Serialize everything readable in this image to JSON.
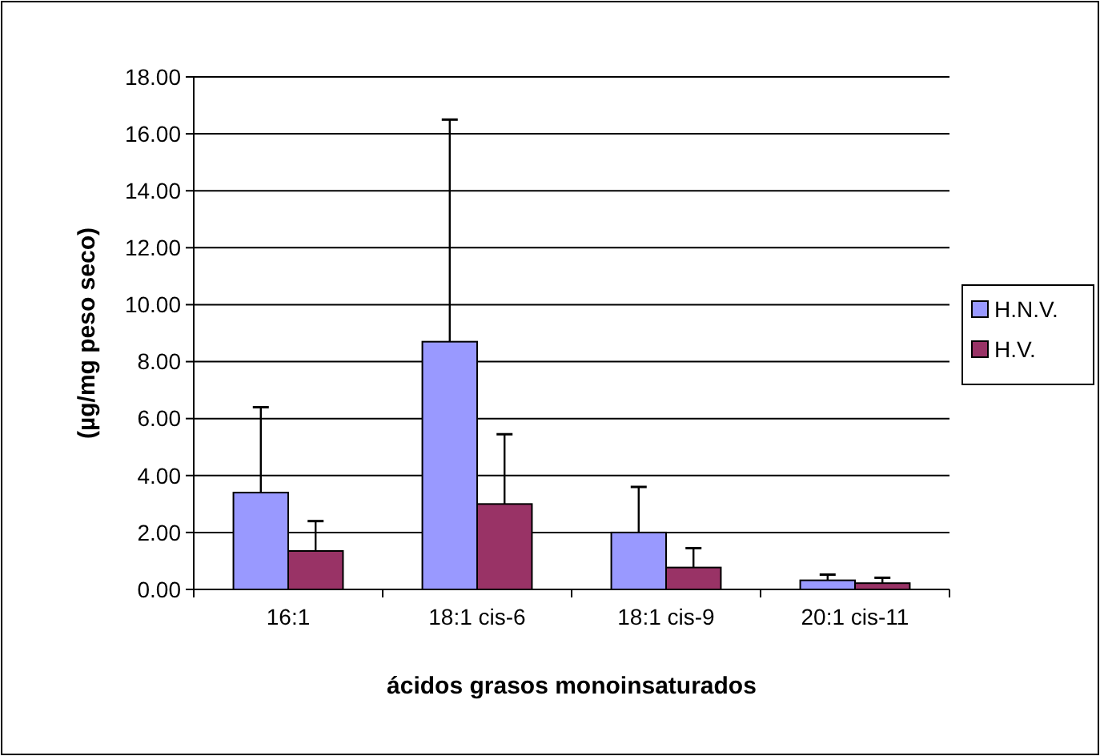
{
  "chart_data": {
    "type": "bar",
    "xlabel": "ácidos grasos monoinsaturados",
    "ylabel": "(µg/mg peso seco)",
    "categories": [
      "16:1",
      "18:1 cis-6",
      "18:1 cis-9",
      "20:1 cis-11"
    ],
    "series": [
      {
        "name": "H.N.V.",
        "color": "#9999ff",
        "values": [
          3.4,
          8.7,
          2.0,
          0.32
        ],
        "errors": [
          [
            3.4,
            6.4
          ],
          [
            8.7,
            16.5
          ],
          [
            2.0,
            3.6
          ],
          [
            0.32,
            0.52
          ]
        ]
      },
      {
        "name": "H.V.",
        "color": "#993366",
        "values": [
          1.35,
          3.0,
          0.77,
          0.22
        ],
        "errors": [
          [
            1.35,
            2.4
          ],
          [
            3.0,
            5.45
          ],
          [
            0.77,
            1.45
          ],
          [
            0.22,
            0.41
          ]
        ]
      }
    ],
    "ylim": [
      0,
      18
    ],
    "yticks": [
      {
        "value": 0,
        "label": "0.00"
      },
      {
        "value": 2,
        "label": "2.00"
      },
      {
        "value": 4,
        "label": "4.00"
      },
      {
        "value": 6,
        "label": "6.00"
      },
      {
        "value": 8,
        "label": "8.00"
      },
      {
        "value": 10,
        "label": "10.00"
      },
      {
        "value": 12,
        "label": "12.00"
      },
      {
        "value": 14,
        "label": "14.00"
      },
      {
        "value": 16,
        "label": "16.00"
      },
      {
        "value": 18,
        "label": "18.00"
      }
    ],
    "grid": "y",
    "legend": "right"
  }
}
